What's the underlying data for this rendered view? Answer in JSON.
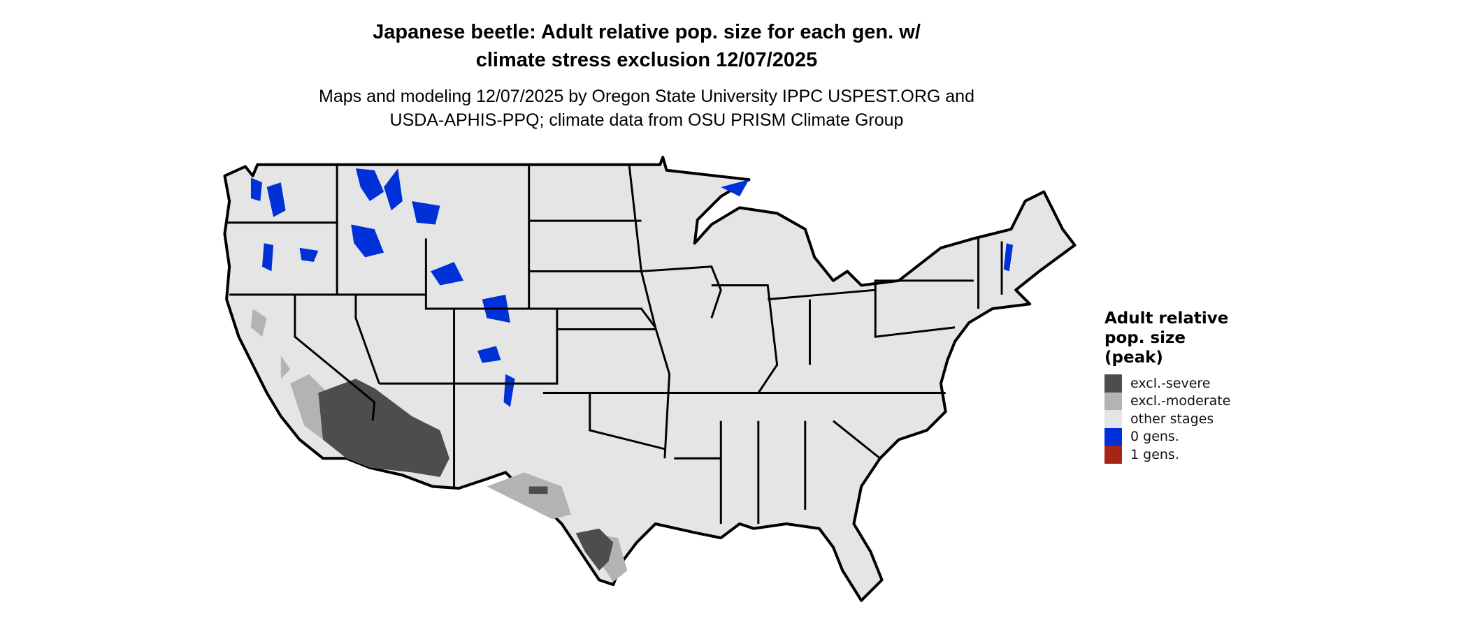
{
  "title": {
    "line1": "Japanese beetle: Adult relative pop. size for each gen. w/",
    "line2": "climate stress exclusion 12/07/2025"
  },
  "subtitle": {
    "line1": "Maps and modeling 12/07/2025 by Oregon State University IPPC USPEST.ORG and",
    "line2": "USDA-APHIS-PPQ; climate data from OSU PRISM Climate Group"
  },
  "legend": {
    "title": "Adult relative pop. size (peak)",
    "items": [
      {
        "label": "excl.-severe",
        "color": "#4d4d4d"
      },
      {
        "label": "excl.-moderate",
        "color": "#b3b3b3"
      },
      {
        "label": "other stages",
        "color": "#e5e5e5"
      },
      {
        "label": "0 gens.",
        "color": "#0030d8"
      },
      {
        "label": "1 gens.",
        "color": "#a82416"
      }
    ]
  },
  "map": {
    "region": "Contiguous United States",
    "land_color": "#e5e5e5",
    "border_color": "#000000"
  }
}
